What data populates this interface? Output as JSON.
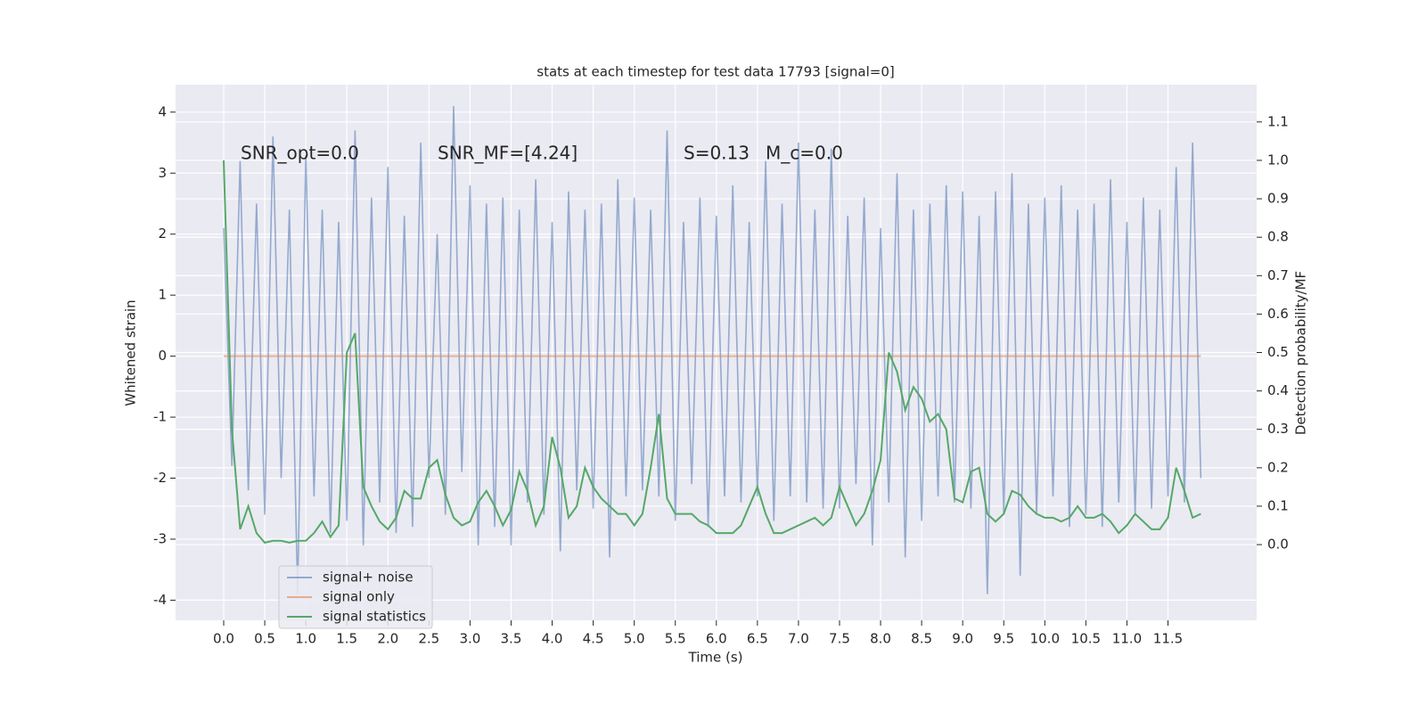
{
  "chart_data": {
    "type": "line",
    "title": "stats at each timestep for test data 17793 [signal=0]",
    "xlabel": "Time (s)",
    "ylabel": "Whitened strain",
    "y2label": "Detection probability/MF",
    "annotations": [
      "SNR_opt=0.0",
      "SNR_MF=[4.24]",
      "S=0.13",
      "M_c=0.0"
    ],
    "x": [
      0,
      0.1,
      0.2,
      0.3,
      0.4,
      0.5,
      0.6,
      0.7,
      0.8,
      0.9,
      1,
      1.1,
      1.2,
      1.3,
      1.4,
      1.5,
      1.6,
      1.7,
      1.8,
      1.9,
      2,
      2.1,
      2.2,
      2.3,
      2.4,
      2.5,
      2.6,
      2.7,
      2.8,
      2.9,
      3,
      3.1,
      3.2,
      3.3,
      3.4,
      3.5,
      3.6,
      3.7,
      3.8,
      3.9,
      4,
      4.1,
      4.2,
      4.3,
      4.4,
      4.5,
      4.6,
      4.7,
      4.8,
      4.9,
      5,
      5.1,
      5.2,
      5.3,
      5.4,
      5.5,
      5.6,
      5.7,
      5.8,
      5.9,
      6,
      6.1,
      6.2,
      6.3,
      6.4,
      6.5,
      6.6,
      6.7,
      6.8,
      6.9,
      7,
      7.1,
      7.2,
      7.3,
      7.4,
      7.5,
      7.6,
      7.7,
      7.8,
      7.9,
      8,
      8.1,
      8.2,
      8.3,
      8.4,
      8.5,
      8.6,
      8.7,
      8.8,
      8.9,
      9,
      9.1,
      9.2,
      9.3,
      9.4,
      9.5,
      9.6,
      9.7,
      9.8,
      9.9,
      10,
      10.1,
      10.2,
      10.3,
      10.4,
      10.5,
      10.6,
      10.7,
      10.8,
      10.9,
      11,
      11.1,
      11.2,
      11.3,
      11.4,
      11.5,
      11.6,
      11.7,
      11.8,
      11.9
    ],
    "series": [
      {
        "name": "signal+ noise",
        "color": "#4c72b0",
        "opacity": 0.55,
        "values": [
          2.1,
          -1.8,
          3.2,
          -2.2,
          2.5,
          -2.6,
          3.6,
          -2.0,
          2.4,
          -3.9,
          3.3,
          -2.3,
          2.4,
          -2.9,
          2.2,
          -2.7,
          3.7,
          -3.1,
          2.6,
          -2.4,
          3.1,
          -2.9,
          2.3,
          -2.8,
          3.5,
          -2.0,
          2.0,
          -2.6,
          4.1,
          -1.9,
          2.8,
          -3.1,
          2.5,
          -2.8,
          2.6,
          -3.1,
          2.4,
          -2.4,
          2.9,
          -2.6,
          2.2,
          -3.2,
          2.7,
          -2.2,
          2.4,
          -2.5,
          2.5,
          -3.3,
          2.9,
          -2.3,
          2.6,
          -2.2,
          2.4,
          -2.3,
          3.7,
          -2.7,
          2.2,
          -2.1,
          2.6,
          -2.8,
          2.3,
          -2.3,
          2.8,
          -2.4,
          2.2,
          -2.3,
          3.2,
          -2.7,
          2.5,
          -2.3,
          3.5,
          -2.4,
          2.4,
          -2.5,
          3.4,
          -2.5,
          2.3,
          -2.1,
          2.6,
          -3.1,
          2.1,
          -2.4,
          3.0,
          -3.3,
          2.4,
          -2.7,
          2.5,
          -2.3,
          2.8,
          -2.4,
          2.7,
          -2.5,
          2.3,
          -3.9,
          2.7,
          -2.6,
          3.0,
          -3.6,
          2.5,
          -2.6,
          2.6,
          -2.3,
          2.8,
          -2.8,
          2.4,
          -2.6,
          2.5,
          -2.8,
          2.9,
          -2.4,
          2.2,
          -2.6,
          2.6,
          -2.5,
          2.4,
          -2.3,
          3.1,
          -2.4,
          3.5,
          -2.0
        ]
      },
      {
        "name": "signal only",
        "color": "#dd8452",
        "opacity": 0.6,
        "values": [
          0,
          0,
          0,
          0,
          0,
          0,
          0,
          0,
          0,
          0,
          0,
          0,
          0,
          0,
          0,
          0,
          0,
          0,
          0,
          0,
          0,
          0,
          0,
          0,
          0,
          0,
          0,
          0,
          0,
          0,
          0,
          0,
          0,
          0,
          0,
          0,
          0,
          0,
          0,
          0,
          0,
          0,
          0,
          0,
          0,
          0,
          0,
          0,
          0,
          0,
          0,
          0,
          0,
          0,
          0,
          0,
          0,
          0,
          0,
          0,
          0,
          0,
          0,
          0,
          0,
          0,
          0,
          0,
          0,
          0,
          0,
          0,
          0,
          0,
          0,
          0,
          0,
          0,
          0,
          0,
          0,
          0,
          0,
          0,
          0,
          0,
          0,
          0,
          0,
          0,
          0,
          0,
          0,
          0,
          0,
          0,
          0,
          0,
          0,
          0,
          0,
          0,
          0,
          0,
          0,
          0,
          0,
          0,
          0,
          0,
          0,
          0,
          0,
          0,
          0,
          0,
          0,
          0,
          0,
          0
        ]
      },
      {
        "name": "signal statistics",
        "color": "#55a868",
        "opacity": 1,
        "axis": "y2",
        "values": [
          1.0,
          0.3,
          0.04,
          0.1,
          0.03,
          0.005,
          0.01,
          0.01,
          0.005,
          0.01,
          0.01,
          0.03,
          0.06,
          0.02,
          0.05,
          0.5,
          0.55,
          0.15,
          0.1,
          0.06,
          0.04,
          0.07,
          0.14,
          0.12,
          0.12,
          0.2,
          0.22,
          0.13,
          0.07,
          0.05,
          0.06,
          0.11,
          0.14,
          0.1,
          0.05,
          0.09,
          0.19,
          0.14,
          0.05,
          0.1,
          0.28,
          0.2,
          0.07,
          0.1,
          0.2,
          0.15,
          0.12,
          0.1,
          0.08,
          0.08,
          0.05,
          0.08,
          0.2,
          0.34,
          0.12,
          0.08,
          0.08,
          0.08,
          0.06,
          0.05,
          0.03,
          0.03,
          0.03,
          0.05,
          0.1,
          0.15,
          0.08,
          0.03,
          0.03,
          0.04,
          0.05,
          0.06,
          0.07,
          0.05,
          0.07,
          0.15,
          0.1,
          0.05,
          0.08,
          0.14,
          0.22,
          0.5,
          0.45,
          0.35,
          0.41,
          0.38,
          0.32,
          0.34,
          0.3,
          0.12,
          0.11,
          0.19,
          0.2,
          0.08,
          0.06,
          0.08,
          0.14,
          0.13,
          0.1,
          0.08,
          0.07,
          0.07,
          0.06,
          0.07,
          0.1,
          0.07,
          0.07,
          0.08,
          0.06,
          0.03,
          0.05,
          0.08,
          0.06,
          0.04,
          0.04,
          0.07,
          0.2,
          0.14,
          0.07,
          0.08
        ]
      }
    ],
    "xlim": [
      -0.586,
      12.58
    ],
    "ylim": [
      -4.33,
      4.45
    ],
    "y2lim": [
      -0.197,
      1.197
    ],
    "xticks": [
      {
        "value": 0,
        "label": "0.0"
      },
      0.5,
      {
        "value": 1,
        "label": "1.0"
      },
      1.5,
      {
        "value": 2,
        "label": "2.0"
      },
      2.5,
      {
        "value": 3,
        "label": "3.0"
      },
      3.5,
      {
        "value": 4,
        "label": "4.0"
      },
      4.5,
      {
        "value": 5,
        "label": "5.0"
      },
      5.5,
      {
        "value": 6,
        "label": "6.0"
      },
      6.5,
      {
        "value": 7,
        "label": "7.0"
      },
      7.5,
      {
        "value": 8,
        "label": "8.0"
      },
      8.5,
      {
        "value": 9,
        "label": "9.0"
      },
      9.5,
      {
        "value": 10,
        "label": "10.0"
      },
      10.5,
      {
        "value": 11,
        "label": "11.0"
      },
      11.5
    ],
    "yticks": [
      -4,
      -3,
      -2,
      -1,
      0,
      1,
      2,
      3,
      4
    ],
    "y2ticks": [
      {
        "value": 0,
        "label": "0.0"
      },
      0.1,
      0.2,
      0.3,
      0.4,
      0.5,
      0.6,
      0.7,
      0.8,
      0.9,
      {
        "value": 1,
        "label": "1.0"
      },
      1.1
    ],
    "grid": true,
    "legend": "lower left"
  }
}
